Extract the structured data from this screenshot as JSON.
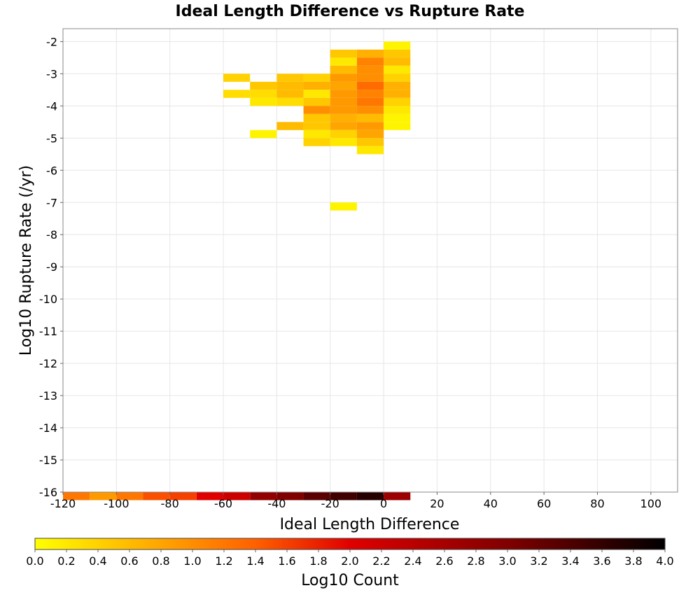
{
  "chart_data": {
    "type": "heatmap",
    "title": "Ideal Length Difference vs Rupture Rate",
    "xlabel": "Ideal Length Difference",
    "ylabel": "Log10 Rupture Rate (/yr)",
    "xlim": [
      -120,
      110
    ],
    "ylim": [
      -16,
      -1.6
    ],
    "x_ticks": [
      -120,
      -100,
      -80,
      -60,
      -40,
      -20,
      0,
      20,
      40,
      60,
      80,
      100
    ],
    "x_tick_labels": [
      "-120",
      "-100",
      "-80",
      "-60",
      "-40",
      "-20",
      "0",
      "20",
      "40",
      "60",
      "80",
      "100"
    ],
    "y_ticks": [
      -2,
      -3,
      -4,
      -5,
      -6,
      -7,
      -8,
      -9,
      -10,
      -11,
      -12,
      -13,
      -14,
      -15,
      -16
    ],
    "y_tick_labels": [
      "-2",
      "-3",
      "-4",
      "-5",
      "-6",
      "-7",
      "-8",
      "-9",
      "-10",
      "-11",
      "-12",
      "-13",
      "-14",
      "-15",
      "-16"
    ],
    "grid": true,
    "bin_width": 10,
    "bin_height": 0.25,
    "cells": [
      {
        "x": 0,
        "y": -2.0,
        "v": 0.1
      },
      {
        "x": -20,
        "y": -2.25,
        "v": 0.5
      },
      {
        "x": -10,
        "y": -2.25,
        "v": 0.7
      },
      {
        "x": 0,
        "y": -2.25,
        "v": 0.5
      },
      {
        "x": -20,
        "y": -2.5,
        "v": 0.2
      },
      {
        "x": -10,
        "y": -2.5,
        "v": 1.1
      },
      {
        "x": 0,
        "y": -2.5,
        "v": 0.6
      },
      {
        "x": -20,
        "y": -2.75,
        "v": 0.6
      },
      {
        "x": -10,
        "y": -2.75,
        "v": 1.0
      },
      {
        "x": 0,
        "y": -2.75,
        "v": 0.2
      },
      {
        "x": -60,
        "y": -3.0,
        "v": 0.4
      },
      {
        "x": -40,
        "y": -3.0,
        "v": 0.5
      },
      {
        "x": -30,
        "y": -3.0,
        "v": 0.4
      },
      {
        "x": -20,
        "y": -3.0,
        "v": 0.9
      },
      {
        "x": -10,
        "y": -3.0,
        "v": 1.0
      },
      {
        "x": 0,
        "y": -3.0,
        "v": 0.4
      },
      {
        "x": -50,
        "y": -3.25,
        "v": 0.5
      },
      {
        "x": -40,
        "y": -3.25,
        "v": 0.6
      },
      {
        "x": -30,
        "y": -3.25,
        "v": 0.7
      },
      {
        "x": -20,
        "y": -3.25,
        "v": 0.8
      },
      {
        "x": -10,
        "y": -3.25,
        "v": 1.3
      },
      {
        "x": 0,
        "y": -3.25,
        "v": 0.7
      },
      {
        "x": -60,
        "y": -3.5,
        "v": 0.3
      },
      {
        "x": -50,
        "y": -3.5,
        "v": 0.3
      },
      {
        "x": -40,
        "y": -3.5,
        "v": 0.6
      },
      {
        "x": -30,
        "y": -3.5,
        "v": 0.2
      },
      {
        "x": -20,
        "y": -3.5,
        "v": 0.9
      },
      {
        "x": -10,
        "y": -3.5,
        "v": 1.1
      },
      {
        "x": 0,
        "y": -3.5,
        "v": 0.7
      },
      {
        "x": -50,
        "y": -3.75,
        "v": 0.2
      },
      {
        "x": -40,
        "y": -3.75,
        "v": 0.3
      },
      {
        "x": -30,
        "y": -3.75,
        "v": 0.5
      },
      {
        "x": -20,
        "y": -3.75,
        "v": 0.9
      },
      {
        "x": -10,
        "y": -3.75,
        "v": 1.2
      },
      {
        "x": 0,
        "y": -3.75,
        "v": 0.4
      },
      {
        "x": -30,
        "y": -4.0,
        "v": 1.0
      },
      {
        "x": -20,
        "y": -4.0,
        "v": 0.9
      },
      {
        "x": -10,
        "y": -4.0,
        "v": 1.0
      },
      {
        "x": 0,
        "y": -4.0,
        "v": 0.2
      },
      {
        "x": -30,
        "y": -4.25,
        "v": 0.5
      },
      {
        "x": -20,
        "y": -4.25,
        "v": 0.7
      },
      {
        "x": -10,
        "y": -4.25,
        "v": 0.6
      },
      {
        "x": 0,
        "y": -4.25,
        "v": 0.1
      },
      {
        "x": -40,
        "y": -4.5,
        "v": 0.6
      },
      {
        "x": -30,
        "y": -4.5,
        "v": 0.5
      },
      {
        "x": -20,
        "y": -4.5,
        "v": 0.8
      },
      {
        "x": -10,
        "y": -4.5,
        "v": 0.9
      },
      {
        "x": 0,
        "y": -4.5,
        "v": 0.1
      },
      {
        "x": -50,
        "y": -4.75,
        "v": 0.1
      },
      {
        "x": -30,
        "y": -4.75,
        "v": 0.2
      },
      {
        "x": -20,
        "y": -4.75,
        "v": 0.4
      },
      {
        "x": -10,
        "y": -4.75,
        "v": 0.8
      },
      {
        "x": -30,
        "y": -5.0,
        "v": 0.4
      },
      {
        "x": -20,
        "y": -5.0,
        "v": 0.2
      },
      {
        "x": -10,
        "y": -5.0,
        "v": 0.5
      },
      {
        "x": -10,
        "y": -5.25,
        "v": 0.2
      },
      {
        "x": -20,
        "y": -7.0,
        "v": 0.1
      },
      {
        "x": -120,
        "y": -16.0,
        "v": 1.2
      },
      {
        "x": -110,
        "y": -16.0,
        "v": 0.9
      },
      {
        "x": -100,
        "y": -16.0,
        "v": 1.2
      },
      {
        "x": -90,
        "y": -16.0,
        "v": 1.5
      },
      {
        "x": -80,
        "y": -16.0,
        "v": 1.6
      },
      {
        "x": -70,
        "y": -16.0,
        "v": 2.0
      },
      {
        "x": -60,
        "y": -16.0,
        "v": 2.2
      },
      {
        "x": -50,
        "y": -16.0,
        "v": 2.8
      },
      {
        "x": -40,
        "y": -16.0,
        "v": 3.0
      },
      {
        "x": -30,
        "y": -16.0,
        "v": 3.3
      },
      {
        "x": -20,
        "y": -16.0,
        "v": 3.5
      },
      {
        "x": -10,
        "y": -16.0,
        "v": 3.7
      },
      {
        "x": 0,
        "y": -16.0,
        "v": 2.7
      }
    ],
    "colorbar": {
      "label": "Log10 Count",
      "range": [
        0.0,
        4.0
      ],
      "ticks": [
        "0.0",
        "0.2",
        "0.4",
        "0.6",
        "0.8",
        "1.0",
        "1.2",
        "1.4",
        "1.6",
        "1.8",
        "2.0",
        "2.2",
        "2.4",
        "2.6",
        "2.8",
        "3.0",
        "3.2",
        "3.4",
        "3.6",
        "3.8",
        "4.0"
      ],
      "colormap_stops": [
        {
          "v": 0.0,
          "color": "#ffff00"
        },
        {
          "v": 0.7,
          "color": "#ffb000"
        },
        {
          "v": 1.4,
          "color": "#ff6000"
        },
        {
          "v": 2.0,
          "color": "#e00000"
        },
        {
          "v": 3.0,
          "color": "#800000"
        },
        {
          "v": 4.0,
          "color": "#000000"
        }
      ]
    }
  }
}
